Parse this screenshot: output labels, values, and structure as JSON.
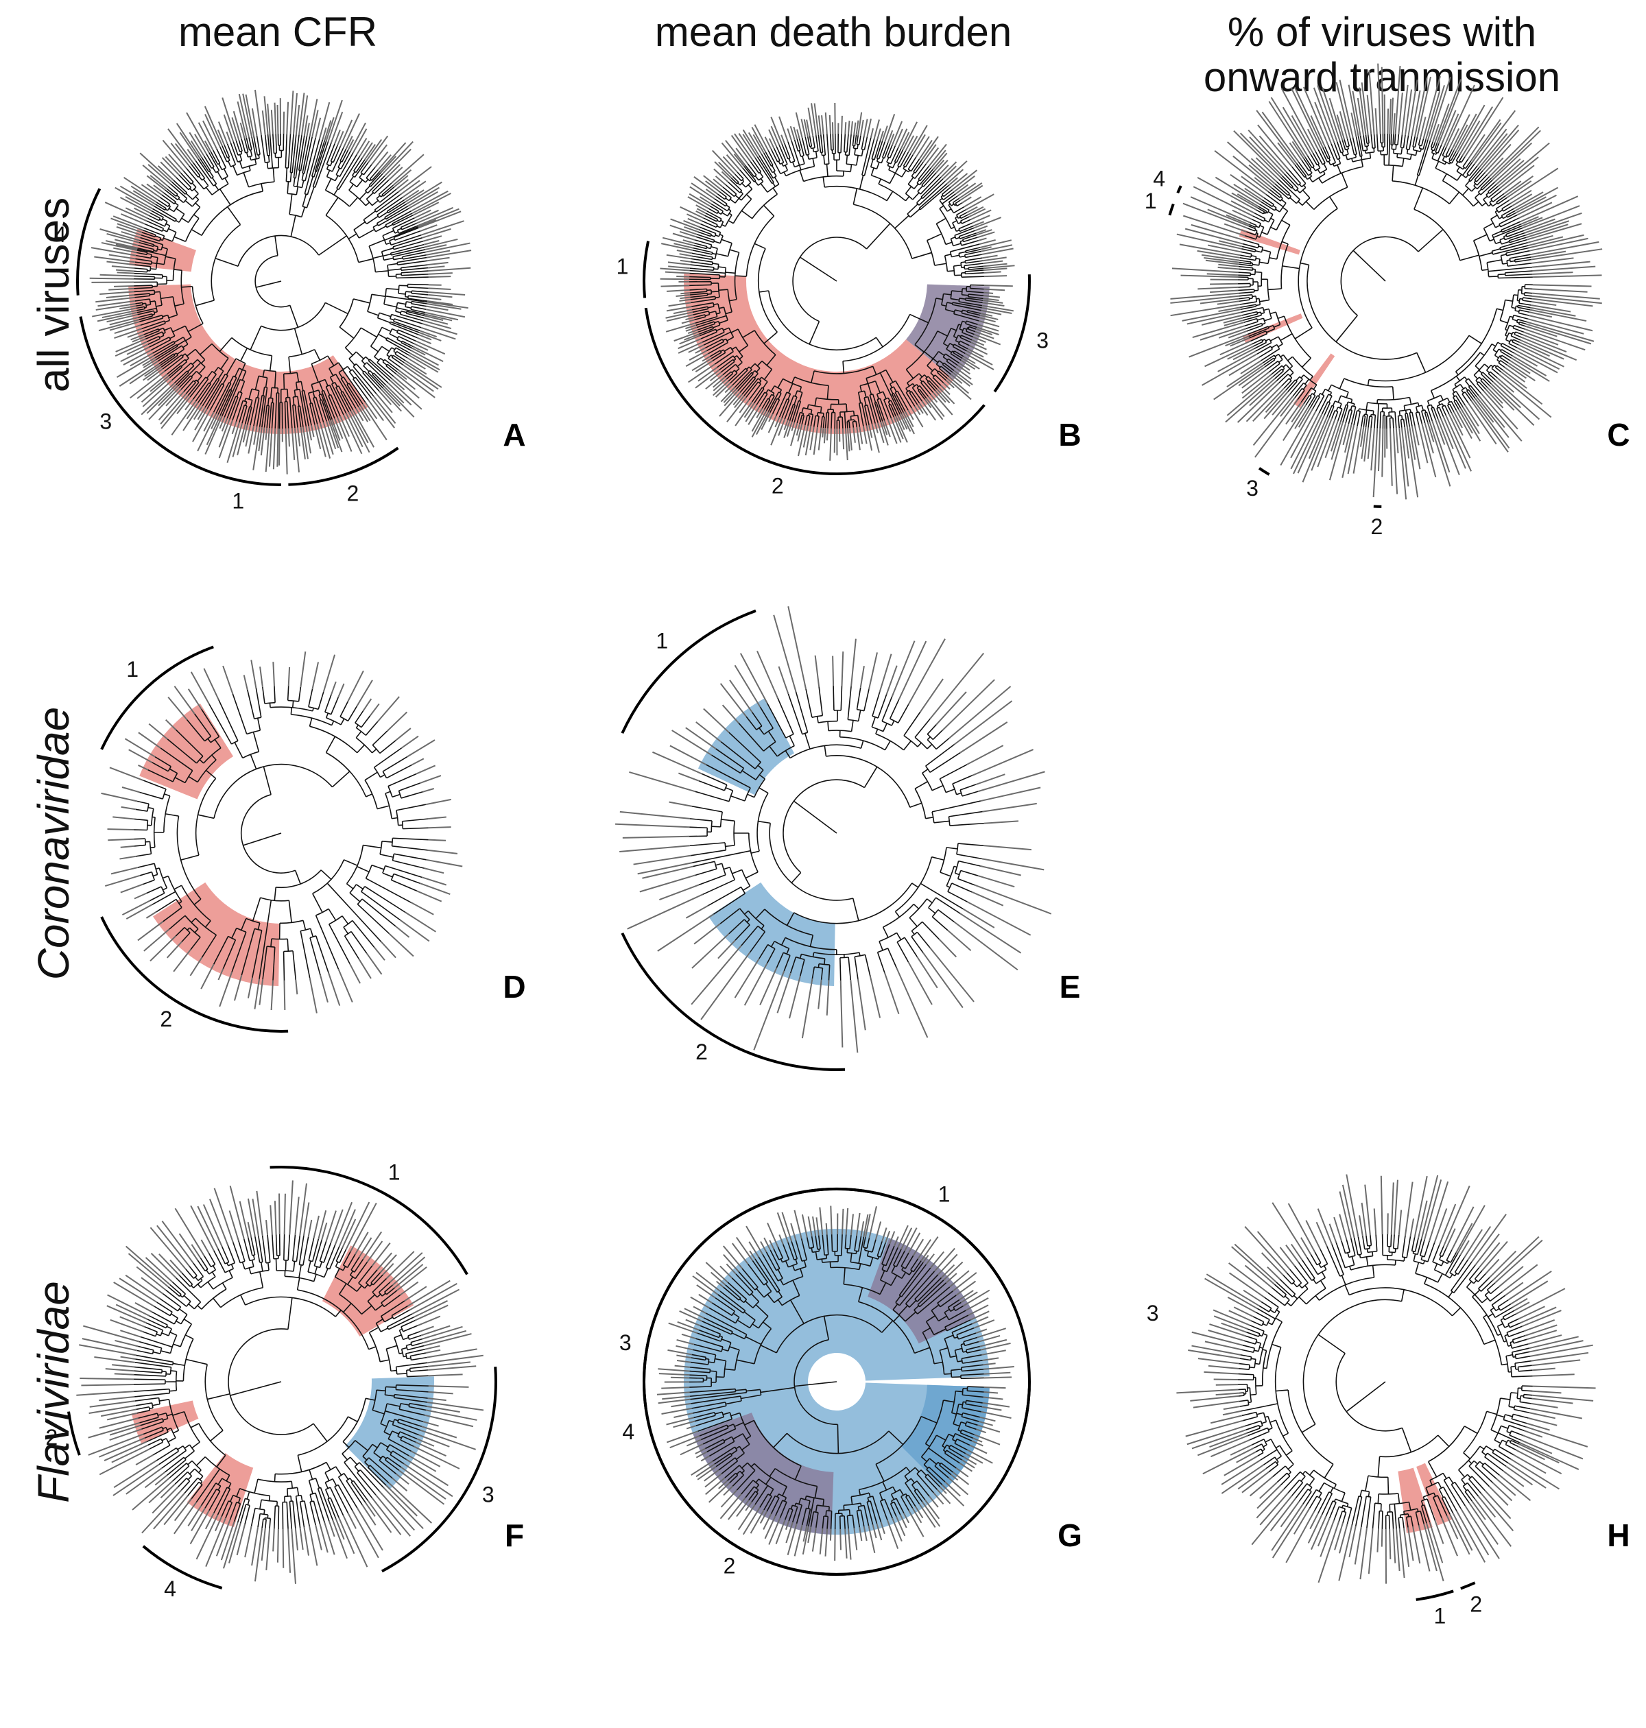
{
  "columns": [
    {
      "title": "mean CFR"
    },
    {
      "title": "mean death burden"
    },
    {
      "title": "% of viruses with\nonward tranmission"
    }
  ],
  "rows": [
    {
      "label": "all viruses",
      "italic": false
    },
    {
      "label": "Coronaviridae",
      "italic": true
    },
    {
      "label": "Flaviviridae",
      "italic": true
    }
  ],
  "colors": {
    "red": "#e36a62",
    "blue": "#5b9bc9",
    "purple": "#8a7f9e",
    "branch": "#111111",
    "tip": "#6b6b6b"
  },
  "panels": [
    {
      "letter": "A",
      "row": 0,
      "col": 0,
      "tips": 320,
      "tip_len": 0.07,
      "seed": 11,
      "highlights": [
        {
          "a0": 200,
          "a1": 186,
          "color": "red"
        },
        {
          "a0": 178,
          "a1": 90,
          "color": "red"
        },
        {
          "a0": 90,
          "a1": 55,
          "color": "red"
        }
      ],
      "clades": [
        {
          "n": "4",
          "a0": 207,
          "a1": 176
        },
        {
          "n": "3",
          "a0": 170,
          "a1": 112
        },
        {
          "n": "1",
          "a0": 112,
          "a1": 90
        },
        {
          "n": "2",
          "a0": 88,
          "a1": 55
        }
      ]
    },
    {
      "letter": "B",
      "row": 0,
      "col": 1,
      "tips": 320,
      "tip_len": 0.05,
      "seed": 23,
      "highlights": [
        {
          "a0": 183,
          "a1": 40,
          "color": "red"
        },
        {
          "a0": 40,
          "a1": 2,
          "color": "purple"
        }
      ],
      "clades": [
        {
          "n": "1",
          "a0": 192,
          "a1": 175
        },
        {
          "n": "2",
          "a0": 172,
          "a1": 40
        },
        {
          "n": "3",
          "a0": 35,
          "a1": -2
        }
      ]
    },
    {
      "letter": "C",
      "row": 0,
      "col": 2,
      "tips": 320,
      "tip_len": 0.11,
      "seed": 37,
      "highlights": [
        {
          "a0": 127,
          "a1": 124,
          "color": "red"
        },
        {
          "a0": 200,
          "a1": 197,
          "color": "red"
        },
        {
          "a0": 159,
          "a1": 156,
          "color": "red"
        }
      ],
      "clades": [
        {
          "n": "3",
          "a0": 124,
          "a1": 121
        },
        {
          "n": "2",
          "a0": 93,
          "a1": 91
        },
        {
          "n": "1",
          "a0": 200,
          "a1": 197
        },
        {
          "n": "4",
          "a0": 205,
          "a1": 203
        }
      ]
    },
    {
      "letter": "D",
      "row": 1,
      "col": 0,
      "tips": 90,
      "tip_len": 0.06,
      "seed": 41,
      "highlights": [
        {
          "a0": 238,
          "a1": 202,
          "color": "red"
        },
        {
          "a0": 147,
          "a1": 91,
          "color": "red"
        }
      ],
      "clades": [
        {
          "n": "1",
          "a0": 250,
          "a1": 205
        },
        {
          "n": "2",
          "a0": 155,
          "a1": 88
        }
      ]
    },
    {
      "letter": "E",
      "row": 1,
      "col": 1,
      "tips": 90,
      "tip_len": 0.13,
      "seed": 43,
      "highlights": [
        {
          "a0": 242,
          "a1": 205,
          "color": "blue"
        },
        {
          "a0": 147,
          "a1": 91,
          "color": "blue"
        }
      ],
      "clades": [
        {
          "n": "1",
          "a0": 250,
          "a1": 205
        },
        {
          "n": "2",
          "a0": 155,
          "a1": 88
        }
      ]
    },
    {
      "letter": "F",
      "row": 2,
      "col": 0,
      "tips": 200,
      "tip_len": 0.09,
      "seed": 53,
      "highlights": [
        {
          "a0": 297,
          "a1": 330,
          "color": "red"
        },
        {
          "a0": 168,
          "a1": 156,
          "color": "red"
        },
        {
          "a0": 128,
          "a1": 108,
          "color": "red"
        },
        {
          "a0": 45,
          "a1": -2,
          "color": "blue"
        }
      ],
      "clades": [
        {
          "n": "1",
          "a0": 267,
          "a1": 330
        },
        {
          "n": "2",
          "a0": 172,
          "a1": 160
        },
        {
          "n": "4",
          "a0": 130,
          "a1": 106
        },
        {
          "n": "3",
          "a0": 62,
          "a1": -4
        }
      ]
    },
    {
      "letter": "G",
      "row": 2,
      "col": 1,
      "tips": 200,
      "tip_len": 0.05,
      "seed": 59,
      "highlights": [
        {
          "a0": 358,
          "a1": 2,
          "color": "blue",
          "r0": 0.14,
          "full": true
        },
        {
          "a0": 290,
          "a1": 335,
          "color": "purple"
        },
        {
          "a0": 160,
          "a1": 92,
          "color": "purple"
        },
        {
          "a0": 45,
          "a1": 2,
          "color": "blue"
        }
      ],
      "clades": [
        {
          "n": "1",
          "a0": 3,
          "a1": 355,
          "big": true
        },
        {
          "n": "4",
          "a0": 2,
          "a1": 330
        }
      ]
    },
    {
      "letter": "H",
      "row": 2,
      "col": 2,
      "tips": 200,
      "tip_len": 0.1,
      "seed": 61,
      "highlights": [
        {
          "a0": 82,
          "a1": 72,
          "color": "red"
        },
        {
          "a0": 70,
          "a1": 64,
          "color": "red"
        }
      ],
      "clades": [
        {
          "n": "1",
          "a0": 82,
          "a1": 72
        },
        {
          "n": "2",
          "a0": 70,
          "a1": 66
        },
        {
          "n": "3",
          "a0": 196,
          "a1": 196,
          "label_only": true
        }
      ]
    }
  ],
  "extra_labels": [
    {
      "panel": "G",
      "n": "2",
      "a": 120
    },
    {
      "panel": "G",
      "n": "3",
      "a": 190
    }
  ]
}
